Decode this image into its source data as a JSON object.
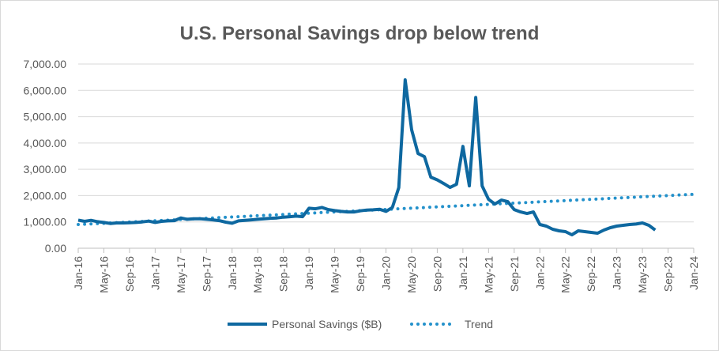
{
  "chart_data": {
    "type": "line",
    "title": "U.S. Personal Savings drop below trend",
    "xlabel": "",
    "ylabel": "",
    "ylim": [
      0,
      7000
    ],
    "y_ticks": [
      "0.00",
      "1,000.00",
      "2,000.00",
      "3,000.00",
      "4,000.00",
      "5,000.00",
      "6,000.00",
      "7,000.00"
    ],
    "x_ticks": [
      "Jan-16",
      "May-16",
      "Sep-16",
      "Jan-17",
      "May-17",
      "Sep-17",
      "Jan-18",
      "May-18",
      "Sep-18",
      "Jan-19",
      "May-19",
      "Sep-19",
      "Jan-20",
      "May-20",
      "Sep-20",
      "Jan-21",
      "May-21",
      "Sep-21",
      "Jan-22",
      "May-22",
      "Sep-22",
      "Jan-23",
      "May-23",
      "Sep-23",
      "Jan-24"
    ],
    "x_range": [
      "Jan-16",
      "Jan-24"
    ],
    "x_start": "Jan-16",
    "grid": true,
    "legend_position": "bottom",
    "colors": {
      "series": "#0E68A0",
      "trend": "#2391CB",
      "grid": "#D9D9D9",
      "text": "#595959"
    },
    "series": [
      {
        "name": "Personal Savings ($B)",
        "frequency": "monthly",
        "values": [
          1070,
          1020,
          1060,
          1010,
          980,
          940,
          960,
          960,
          970,
          980,
          1000,
          1030,
          980,
          1020,
          1040,
          1050,
          1150,
          1100,
          1120,
          1120,
          1100,
          1080,
          1050,
          990,
          950,
          1040,
          1060,
          1080,
          1100,
          1120,
          1140,
          1150,
          1180,
          1200,
          1220,
          1200,
          1520,
          1500,
          1550,
          1470,
          1430,
          1400,
          1380,
          1380,
          1420,
          1450,
          1460,
          1480,
          1400,
          1550,
          2300,
          6400,
          4500,
          3600,
          3480,
          2700,
          2600,
          2460,
          2310,
          2430,
          3870,
          2370,
          5730,
          2370,
          1860,
          1680,
          1830,
          1770,
          1470,
          1380,
          1320,
          1380,
          900,
          840,
          720,
          660,
          630,
          510,
          660,
          630,
          600,
          570,
          690,
          780,
          840,
          870,
          900,
          920,
          960,
          870,
          690
        ]
      },
      {
        "name": "Trend",
        "style": "dotted",
        "start": {
          "x": "Jan-16",
          "y": 900
        },
        "end": {
          "x": "Jan-24",
          "y": 2050
        }
      }
    ]
  }
}
